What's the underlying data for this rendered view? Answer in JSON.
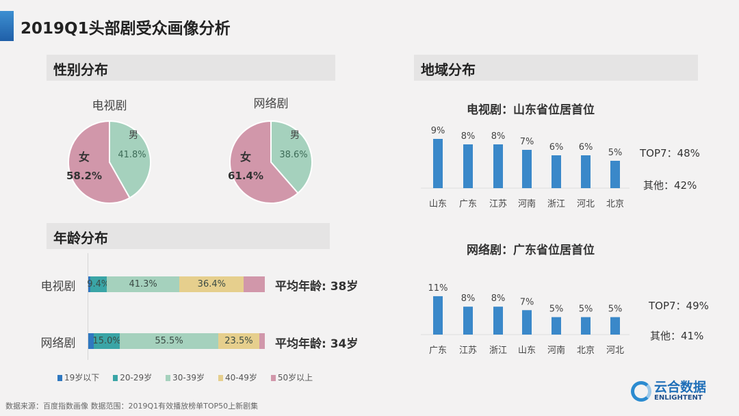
{
  "title": "2019Q1头部剧受众画像分析",
  "sections": {
    "gender": "性别分布",
    "age": "年龄分布",
    "region": "地域分布"
  },
  "colors": {
    "female": "#d197aa",
    "male": "#a5d1bd",
    "bar": "#3a88c9",
    "age": [
      "#2f78c0",
      "#3aa5a6",
      "#a5d1bd",
      "#e6cf8d",
      "#d197aa"
    ]
  },
  "chart_data": [
    {
      "type": "pie",
      "title": "电视剧",
      "slices": [
        {
          "name": "男",
          "value": 41.8,
          "label": "41.8%"
        },
        {
          "name": "女",
          "value": 58.2,
          "label": "58.2%"
        }
      ]
    },
    {
      "type": "pie",
      "title": "网络剧",
      "slices": [
        {
          "name": "男",
          "value": 38.6,
          "label": "38.6%"
        },
        {
          "name": "女",
          "value": 61.4,
          "label": "61.4%"
        }
      ]
    },
    {
      "type": "bar",
      "stacked": true,
      "orientation": "horizontal",
      "categories": [
        "电视剧",
        "网络剧"
      ],
      "legend": [
        "19岁以下",
        "20-29岁",
        "30-39岁",
        "40-49岁",
        "50岁以上"
      ],
      "series": [
        {
          "name": "19岁以下",
          "values": [
            1.0,
            3.0
          ],
          "labels": [
            "",
            ""
          ]
        },
        {
          "name": "20-29岁",
          "values": [
            9.4,
            15.0
          ],
          "labels": [
            "9.4%",
            "15.0%"
          ]
        },
        {
          "name": "30-39岁",
          "values": [
            41.3,
            55.5
          ],
          "labels": [
            "41.3%",
            "55.5%"
          ]
        },
        {
          "name": "40-49岁",
          "values": [
            36.4,
            23.5
          ],
          "labels": [
            "36.4%",
            "23.5%"
          ]
        },
        {
          "name": "50岁以上",
          "values": [
            11.9,
            3.0
          ],
          "labels": [
            "",
            ""
          ]
        }
      ],
      "annotations": [
        "平均年龄: 38岁",
        "平均年龄: 34岁"
      ]
    },
    {
      "type": "bar",
      "title": "电视剧：山东省位居首位",
      "categories": [
        "山东",
        "广东",
        "江苏",
        "河南",
        "浙江",
        "河北",
        "北京"
      ],
      "values": [
        9,
        8,
        8,
        7,
        6,
        6,
        5
      ],
      "labels": [
        "9%",
        "8%",
        "8%",
        "7%",
        "6%",
        "6%",
        "5%"
      ],
      "side": [
        "TOP7：48%",
        "其他：42%"
      ]
    },
    {
      "type": "bar",
      "title": "网络剧：广东省位居首位",
      "categories": [
        "广东",
        "江苏",
        "浙江",
        "山东",
        "河南",
        "北京",
        "河北"
      ],
      "values": [
        11,
        8,
        8,
        7,
        5,
        5,
        5
      ],
      "labels": [
        "11%",
        "8%",
        "8%",
        "7%",
        "5%",
        "5%",
        "5%"
      ],
      "side": [
        "TOP7：49%",
        "其他：41%"
      ]
    }
  ],
  "footer": "数据来源：百度指数画像    数据范围：2019Q1有效播放榜单TOP50上新剧集",
  "logo": {
    "cn": "云合数据",
    "en": "ENLIGHTENT"
  }
}
